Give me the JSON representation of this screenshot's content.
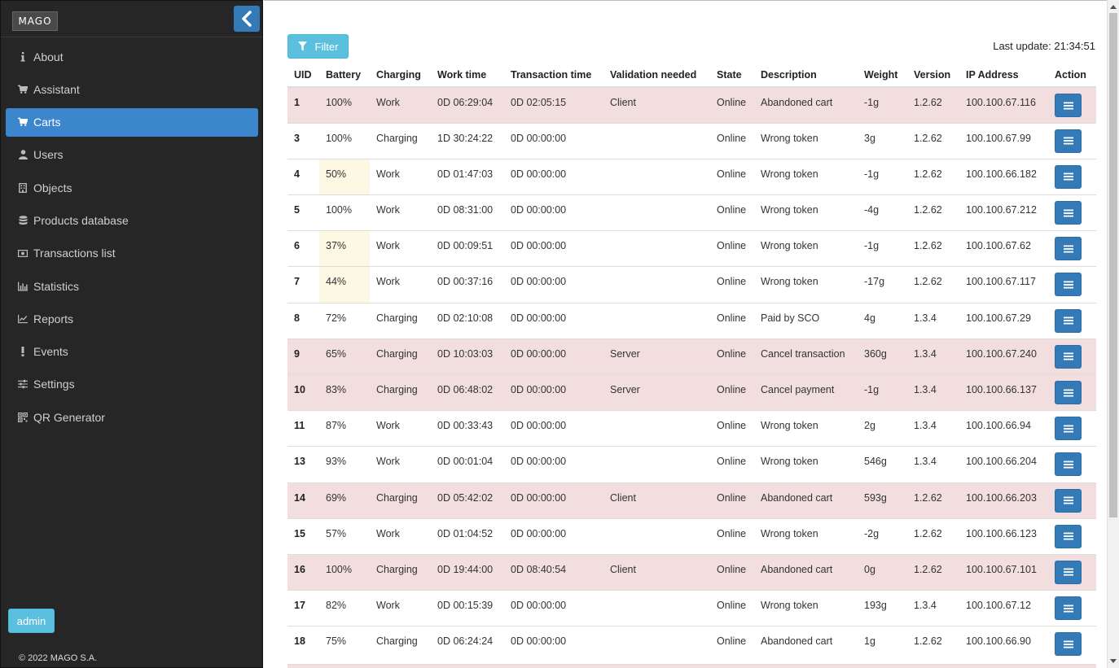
{
  "sidebar": {
    "logo": "MAGO",
    "items": [
      {
        "label": "About",
        "icon": "info-icon"
      },
      {
        "label": "Assistant",
        "icon": "cart-icon"
      },
      {
        "label": "Carts",
        "icon": "cart-icon",
        "active": true
      },
      {
        "label": "Users",
        "icon": "user-icon"
      },
      {
        "label": "Objects",
        "icon": "building-icon"
      },
      {
        "label": "Products database",
        "icon": "database-icon"
      },
      {
        "label": "Transactions list",
        "icon": "money-icon"
      },
      {
        "label": "Statistics",
        "icon": "bar-chart-icon"
      },
      {
        "label": "Reports",
        "icon": "line-chart-icon"
      },
      {
        "label": "Events",
        "icon": "exclamation-icon"
      },
      {
        "label": "Settings",
        "icon": "sliders-icon"
      },
      {
        "label": "QR Generator",
        "icon": "qrcode-icon"
      }
    ],
    "admin_label": "admin",
    "copyright": "© 2022 MAGO S.A."
  },
  "toolbar": {
    "filter_label": "Filter",
    "last_update": "Last update: 21:34:51"
  },
  "table": {
    "headers": [
      "UID",
      "Battery",
      "Charging",
      "Work time",
      "Transaction time",
      "Validation needed",
      "State",
      "Description",
      "Weight",
      "Version",
      "IP Address",
      "Action"
    ],
    "rows": [
      {
        "uid": "1",
        "battery": "100%",
        "charging": "Work",
        "work_time": "0D 06:29:04",
        "transaction_time": "0D 02:05:15",
        "validation": "Client",
        "state": "Online",
        "description": "Abandoned cart",
        "weight": "-1g",
        "version": "1.2.62",
        "ip": "100.100.67.116",
        "highlight": "danger"
      },
      {
        "uid": "3",
        "battery": "100%",
        "charging": "Charging",
        "work_time": "1D 30:24:22",
        "transaction_time": "0D 00:00:00",
        "validation": "",
        "state": "Online",
        "description": "Wrong token",
        "weight": "3g",
        "version": "1.2.62",
        "ip": "100.100.67.99",
        "highlight": ""
      },
      {
        "uid": "4",
        "battery": "50%",
        "charging": "Work",
        "work_time": "0D 01:47:03",
        "transaction_time": "0D 00:00:00",
        "validation": "",
        "state": "Online",
        "description": "Wrong token",
        "weight": "-1g",
        "version": "1.2.62",
        "ip": "100.100.66.182",
        "highlight": "",
        "battery_warn": true
      },
      {
        "uid": "5",
        "battery": "100%",
        "charging": "Work",
        "work_time": "0D 08:31:00",
        "transaction_time": "0D 00:00:00",
        "validation": "",
        "state": "Online",
        "description": "Wrong token",
        "weight": "-4g",
        "version": "1.2.62",
        "ip": "100.100.67.212",
        "highlight": ""
      },
      {
        "uid": "6",
        "battery": "37%",
        "charging": "Work",
        "work_time": "0D 00:09:51",
        "transaction_time": "0D 00:00:00",
        "validation": "",
        "state": "Online",
        "description": "Wrong token",
        "weight": "-1g",
        "version": "1.2.62",
        "ip": "100.100.67.62",
        "highlight": "",
        "battery_warn": true
      },
      {
        "uid": "7",
        "battery": "44%",
        "charging": "Work",
        "work_time": "0D 00:37:16",
        "transaction_time": "0D 00:00:00",
        "validation": "",
        "state": "Online",
        "description": "Wrong token",
        "weight": "-17g",
        "version": "1.2.62",
        "ip": "100.100.67.117",
        "highlight": "",
        "battery_warn": true
      },
      {
        "uid": "8",
        "battery": "72%",
        "charging": "Charging",
        "work_time": "0D 02:10:08",
        "transaction_time": "0D 00:00:00",
        "validation": "",
        "state": "Online",
        "description": "Paid by SCO",
        "weight": "4g",
        "version": "1.3.4",
        "ip": "100.100.67.29",
        "highlight": ""
      },
      {
        "uid": "9",
        "battery": "65%",
        "charging": "Charging",
        "work_time": "0D 10:03:03",
        "transaction_time": "0D 00:00:00",
        "validation": "Server",
        "state": "Online",
        "description": "Cancel transaction",
        "weight": "360g",
        "version": "1.3.4",
        "ip": "100.100.67.240",
        "highlight": "danger"
      },
      {
        "uid": "10",
        "battery": "83%",
        "charging": "Charging",
        "work_time": "0D 06:48:02",
        "transaction_time": "0D 00:00:00",
        "validation": "Server",
        "state": "Online",
        "description": "Cancel payment",
        "weight": "-1g",
        "version": "1.3.4",
        "ip": "100.100.66.137",
        "highlight": "danger"
      },
      {
        "uid": "11",
        "battery": "87%",
        "charging": "Work",
        "work_time": "0D 00:33:43",
        "transaction_time": "0D 00:00:00",
        "validation": "",
        "state": "Online",
        "description": "Wrong token",
        "weight": "2g",
        "version": "1.3.4",
        "ip": "100.100.66.94",
        "highlight": ""
      },
      {
        "uid": "13",
        "battery": "93%",
        "charging": "Work",
        "work_time": "0D 00:01:04",
        "transaction_time": "0D 00:00:00",
        "validation": "",
        "state": "Online",
        "description": "Wrong token",
        "weight": "546g",
        "version": "1.3.4",
        "ip": "100.100.66.204",
        "highlight": ""
      },
      {
        "uid": "14",
        "battery": "69%",
        "charging": "Charging",
        "work_time": "0D 05:42:02",
        "transaction_time": "0D 00:00:00",
        "validation": "Client",
        "state": "Online",
        "description": "Abandoned cart",
        "weight": "593g",
        "version": "1.2.62",
        "ip": "100.100.66.203",
        "highlight": "danger"
      },
      {
        "uid": "15",
        "battery": "57%",
        "charging": "Work",
        "work_time": "0D 01:04:52",
        "transaction_time": "0D 00:00:00",
        "validation": "",
        "state": "Online",
        "description": "Wrong token",
        "weight": "-2g",
        "version": "1.2.62",
        "ip": "100.100.66.123",
        "highlight": ""
      },
      {
        "uid": "16",
        "battery": "100%",
        "charging": "Charging",
        "work_time": "0D 19:44:00",
        "transaction_time": "0D 08:40:54",
        "validation": "Client",
        "state": "Online",
        "description": "Abandoned cart",
        "weight": "0g",
        "version": "1.2.62",
        "ip": "100.100.67.101",
        "highlight": "danger"
      },
      {
        "uid": "17",
        "battery": "82%",
        "charging": "Work",
        "work_time": "0D 00:15:39",
        "transaction_time": "0D 00:00:00",
        "validation": "",
        "state": "Online",
        "description": "Wrong token",
        "weight": "193g",
        "version": "1.3.4",
        "ip": "100.100.67.12",
        "highlight": ""
      },
      {
        "uid": "18",
        "battery": "75%",
        "charging": "Charging",
        "work_time": "0D 06:24:24",
        "transaction_time": "0D 00:00:00",
        "validation": "",
        "state": "Online",
        "description": "Abandoned cart",
        "weight": "1g",
        "version": "1.2.62",
        "ip": "100.100.66.90",
        "highlight": ""
      }
    ]
  },
  "colors": {
    "sidebar_bg": "#262626",
    "active_item": "#3c86ce",
    "primary": "#337ab7",
    "info": "#5bc0de",
    "danger_row": "#f2dede",
    "warning_cell": "#fcf8e3"
  }
}
